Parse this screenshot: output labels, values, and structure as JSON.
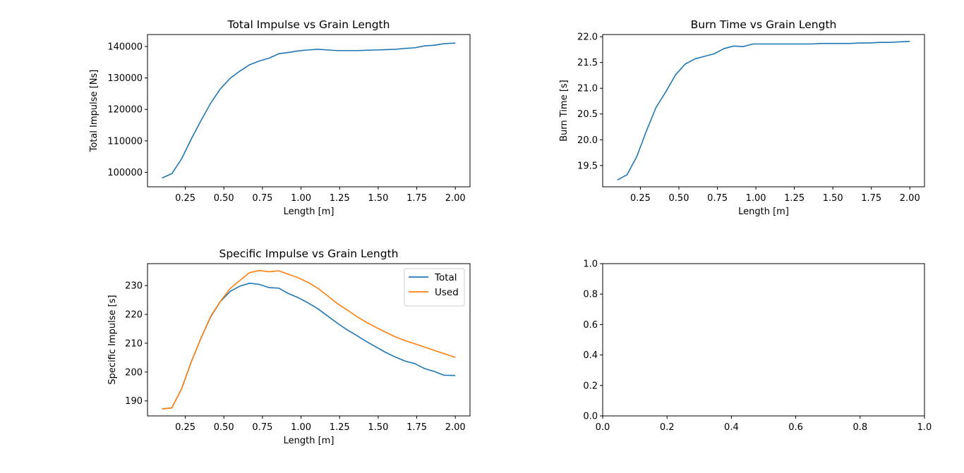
{
  "chart_data": [
    {
      "type": "line",
      "title": "Total Impulse vs Grain Length",
      "xlabel": "Length [m]",
      "ylabel": "Total Impulse [Ns]",
      "xlim": [
        0.005,
        2.095
      ],
      "ylim": [
        95400,
        143800
      ],
      "xticks": [
        0.25,
        0.5,
        0.75,
        1.0,
        1.25,
        1.5,
        1.75,
        2.0
      ],
      "xtick_labels": [
        "0.25",
        "0.50",
        "0.75",
        "1.00",
        "1.25",
        "1.50",
        "1.75",
        "2.00"
      ],
      "yticks": [
        100000,
        110000,
        120000,
        130000,
        140000
      ],
      "ytick_labels": [
        "100000",
        "110000",
        "120000",
        "130000",
        "140000"
      ],
      "grid": false,
      "legend": null,
      "x": [
        0.1,
        0.163,
        0.226,
        0.289,
        0.352,
        0.415,
        0.478,
        0.541,
        0.604,
        0.667,
        0.73,
        0.793,
        0.856,
        0.919,
        0.982,
        1.045,
        1.108,
        1.171,
        1.234,
        1.297,
        1.36,
        1.423,
        1.486,
        1.549,
        1.612,
        1.675,
        1.738,
        1.801,
        1.864,
        1.927,
        2.0
      ],
      "series": [
        {
          "color": "#1f77b4",
          "values": [
            98200,
            99600,
            104300,
            110600,
            116500,
            122000,
            126600,
            129900,
            132200,
            134200,
            135400,
            136300,
            137700,
            138100,
            138600,
            138900,
            139100,
            138900,
            138700,
            138700,
            138700,
            138800,
            138900,
            139000,
            139100,
            139400,
            139600,
            140200,
            140400,
            140900,
            141100
          ]
        }
      ]
    },
    {
      "type": "line",
      "title": "Burn Time vs Grain Length",
      "xlabel": "Length [m]",
      "ylabel": "Burn Time [s]",
      "xlim": [
        0.005,
        2.095
      ],
      "ylim": [
        19.087,
        22.043
      ],
      "xticks": [
        0.25,
        0.5,
        0.75,
        1.0,
        1.25,
        1.5,
        1.75,
        2.0
      ],
      "xtick_labels": [
        "0.25",
        "0.50",
        "0.75",
        "1.00",
        "1.25",
        "1.50",
        "1.75",
        "2.00"
      ],
      "yticks": [
        19.5,
        20.0,
        20.5,
        21.0,
        21.5,
        22.0
      ],
      "ytick_labels": [
        "19.5",
        "20.0",
        "20.5",
        "21.0",
        "21.5",
        "22.0"
      ],
      "grid": false,
      "legend": null,
      "x": [
        0.1,
        0.163,
        0.226,
        0.289,
        0.352,
        0.415,
        0.478,
        0.541,
        0.604,
        0.667,
        0.73,
        0.793,
        0.856,
        0.919,
        0.982,
        1.045,
        1.108,
        1.171,
        1.234,
        1.297,
        1.36,
        1.423,
        1.486,
        1.549,
        1.612,
        1.675,
        1.738,
        1.801,
        1.864,
        1.927,
        2.0
      ],
      "series": [
        {
          "color": "#1f77b4",
          "values": [
            19.22,
            19.32,
            19.67,
            20.17,
            20.63,
            20.93,
            21.26,
            21.47,
            21.57,
            21.62,
            21.67,
            21.77,
            21.82,
            21.81,
            21.86,
            21.86,
            21.86,
            21.86,
            21.86,
            21.86,
            21.86,
            21.87,
            21.87,
            21.87,
            21.87,
            21.88,
            21.88,
            21.89,
            21.89,
            21.9,
            21.91
          ]
        }
      ]
    },
    {
      "type": "line",
      "title": "Specific Impulse vs Grain Length",
      "xlabel": "Length [m]",
      "ylabel": "Specific Impulse [s]",
      "xlim": [
        0.005,
        2.095
      ],
      "ylim": [
        184.8,
        237.6
      ],
      "xticks": [
        0.25,
        0.5,
        0.75,
        1.0,
        1.25,
        1.5,
        1.75,
        2.0
      ],
      "xtick_labels": [
        "0.25",
        "0.50",
        "0.75",
        "1.00",
        "1.25",
        "1.50",
        "1.75",
        "2.00"
      ],
      "yticks": [
        190,
        200,
        210,
        220,
        230
      ],
      "ytick_labels": [
        "190",
        "200",
        "210",
        "220",
        "230"
      ],
      "grid": false,
      "legend": {
        "position": "top-right",
        "entries": [
          "Total",
          "Used"
        ]
      },
      "x": [
        0.1,
        0.163,
        0.226,
        0.289,
        0.352,
        0.415,
        0.478,
        0.541,
        0.604,
        0.667,
        0.73,
        0.793,
        0.856,
        0.919,
        0.982,
        1.045,
        1.108,
        1.171,
        1.234,
        1.297,
        1.36,
        1.423,
        1.486,
        1.549,
        1.612,
        1.675,
        1.738,
        1.801,
        1.864,
        1.927,
        2.0
      ],
      "series": [
        {
          "name": "Total",
          "color": "#1f77b4",
          "values": [
            187.2,
            187.6,
            194.2,
            203.6,
            211.8,
            219.2,
            224.5,
            228.0,
            229.8,
            230.8,
            230.4,
            229.3,
            229.1,
            227.2,
            225.8,
            224.0,
            222.0,
            219.5,
            217.0,
            214.7,
            212.7,
            210.6,
            208.7,
            206.8,
            205.2,
            203.8,
            202.9,
            201.2,
            200.2,
            198.9,
            198.8
          ]
        },
        {
          "name": "Used",
          "color": "#ff7f0e",
          "values": [
            187.2,
            187.6,
            194.2,
            203.6,
            211.8,
            219.4,
            224.6,
            229.0,
            231.8,
            234.5,
            235.2,
            234.8,
            235.1,
            233.9,
            232.7,
            231.1,
            229.1,
            226.5,
            223.8,
            221.6,
            219.3,
            217.3,
            215.5,
            213.8,
            212.2,
            210.9,
            209.8,
            208.7,
            207.5,
            206.4,
            205.1
          ]
        }
      ]
    },
    {
      "type": "line",
      "title": "",
      "xlabel": "",
      "ylabel": "",
      "xlim": [
        0.0,
        1.0
      ],
      "ylim": [
        0.0,
        1.0
      ],
      "xticks": [
        0.0,
        0.2,
        0.4,
        0.6,
        0.8,
        1.0
      ],
      "xtick_labels": [
        "0.0",
        "0.2",
        "0.4",
        "0.6",
        "0.8",
        "1.0"
      ],
      "yticks": [
        0.0,
        0.2,
        0.4,
        0.6,
        0.8,
        1.0
      ],
      "ytick_labels": [
        "0.0",
        "0.2",
        "0.4",
        "0.6",
        "0.8",
        "1.0"
      ],
      "grid": false,
      "legend": null,
      "x": [],
      "series": []
    }
  ]
}
